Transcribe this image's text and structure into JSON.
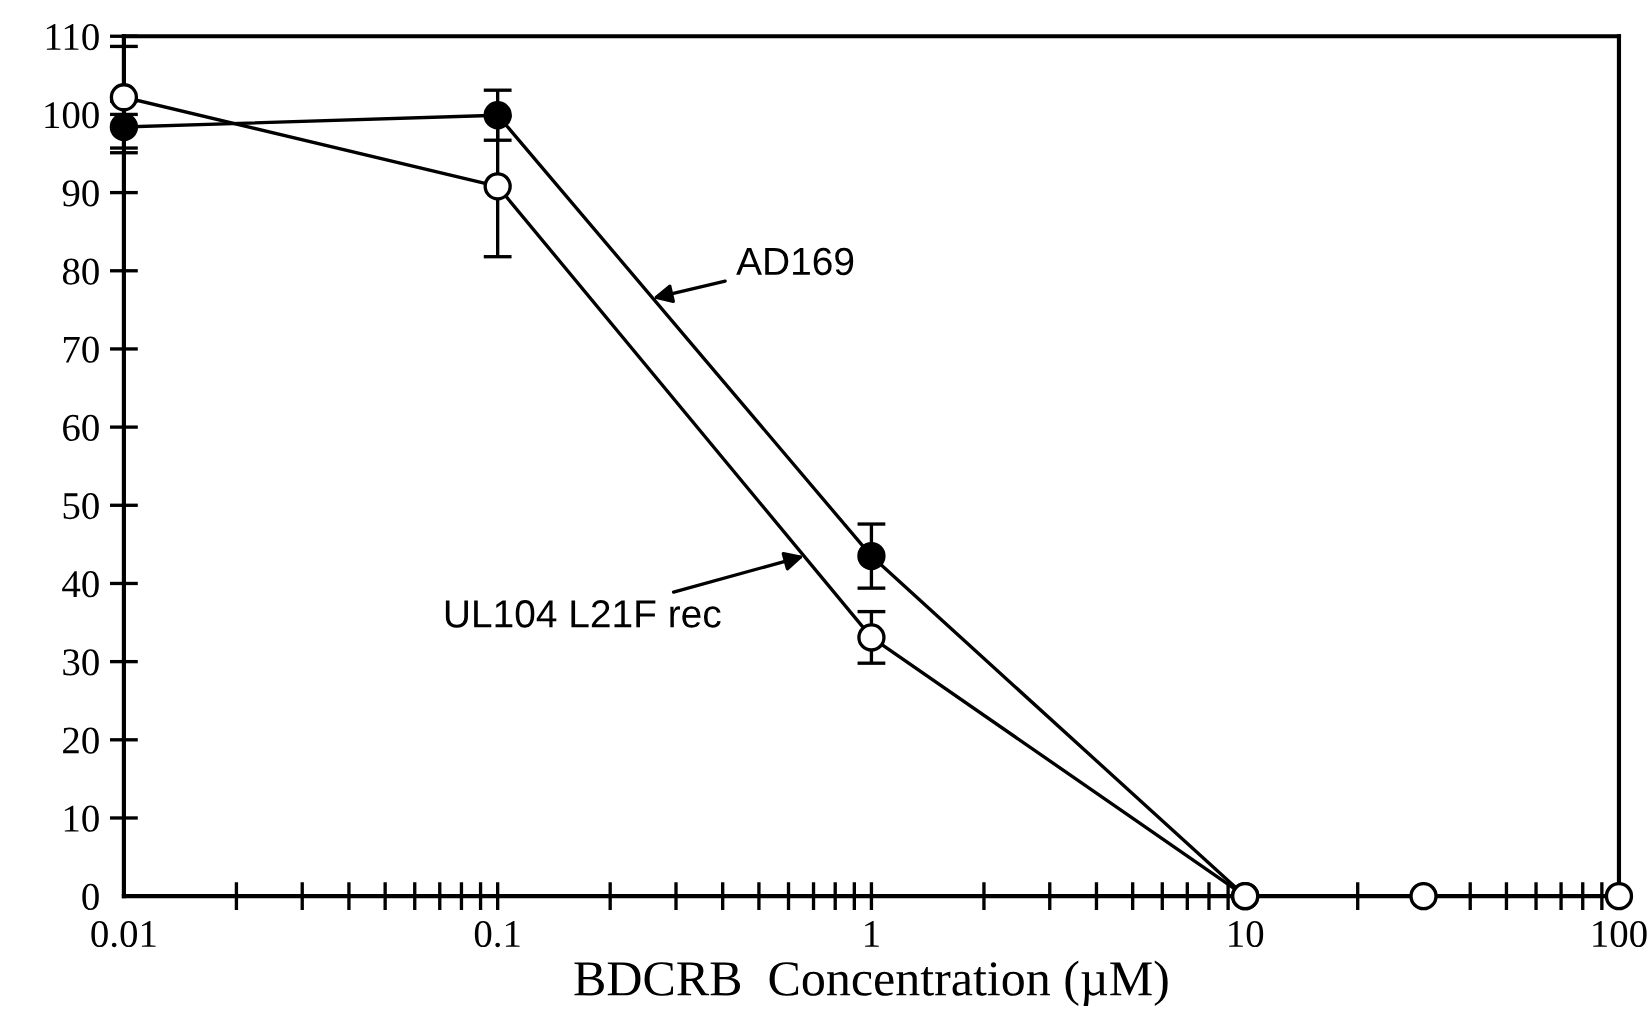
{
  "chart_data": {
    "type": "line",
    "xlabel": "BDCRB  Concentration (µM)",
    "log": "x",
    "marker": "circle",
    "line_style": "solid",
    "grid": false,
    "legend": false,
    "xlim": [
      0.01,
      100
    ],
    "xticks": [
      0.01,
      0.1,
      1,
      10,
      100
    ],
    "ylim": [
      0,
      110
    ],
    "yticks": [
      0,
      10,
      20,
      30,
      40,
      50,
      60,
      70,
      80,
      90,
      100,
      110
    ],
    "series": [
      {
        "color": "#000000",
        "x": [
          0.01,
          0.1,
          1,
          10
        ],
        "values": [
          98.4,
          99.9,
          43.5,
          0
        ],
        "errors": [
          3.3,
          3.2,
          4.1,
          null
        ]
      },
      {
        "color": "#ffffff",
        "x": [
          0.01,
          0.1,
          1,
          10,
          30,
          100
        ],
        "values": [
          102.2,
          90.8,
          33.1,
          0,
          0,
          0
        ],
        "errors": [
          6.5,
          9,
          3.3,
          null,
          null,
          null
        ]
      }
    ],
    "annotations": [
      {
        "text": "AD169",
        "x": 0.26,
        "y": 76.5
      },
      {
        "text": "UL104 L21F rec",
        "x": 0.66,
        "y": 43.5
      }
    ]
  }
}
